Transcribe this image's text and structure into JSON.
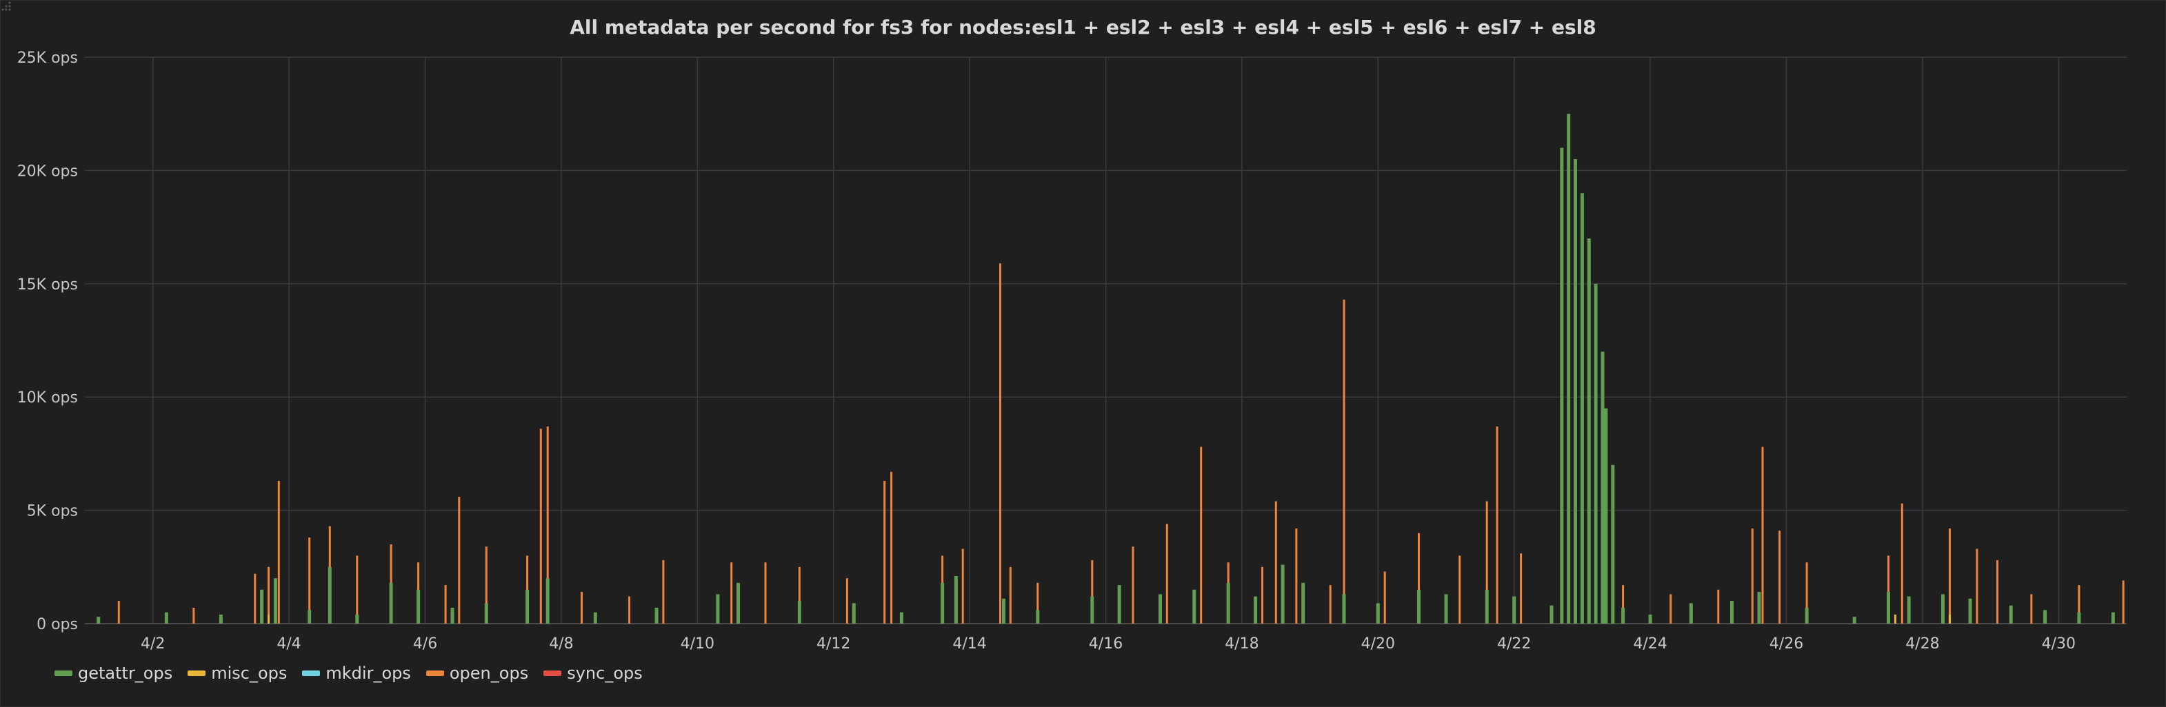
{
  "chart_data": {
    "type": "bar",
    "title": "All metadata per second for fs3 for nodes:esl1 + esl2 + esl3 + esl4 + esl5 + esl6 + esl7 + esl8",
    "x_range": [
      "4/1",
      "5/1"
    ],
    "x_ticks": [
      {
        "day": 2,
        "label": "4/2"
      },
      {
        "day": 4,
        "label": "4/4"
      },
      {
        "day": 6,
        "label": "4/6"
      },
      {
        "day": 8,
        "label": "4/8"
      },
      {
        "day": 10,
        "label": "4/10"
      },
      {
        "day": 12,
        "label": "4/12"
      },
      {
        "day": 14,
        "label": "4/14"
      },
      {
        "day": 16,
        "label": "4/16"
      },
      {
        "day": 18,
        "label": "4/18"
      },
      {
        "day": 20,
        "label": "4/20"
      },
      {
        "day": 22,
        "label": "4/22"
      },
      {
        "day": 24,
        "label": "4/24"
      },
      {
        "day": 26,
        "label": "4/26"
      },
      {
        "day": 28,
        "label": "4/28"
      },
      {
        "day": 30,
        "label": "4/30"
      }
    ],
    "y_ticks": [
      {
        "value": 0,
        "label": "0 ops"
      },
      {
        "value": 5000,
        "label": "5K ops"
      },
      {
        "value": 10000,
        "label": "10K ops"
      },
      {
        "value": 15000,
        "label": "15K ops"
      },
      {
        "value": 20000,
        "label": "20K ops"
      },
      {
        "value": 25000,
        "label": "25K ops"
      }
    ],
    "ylim": [
      0,
      25000
    ],
    "grid": true,
    "legend_position": "bottom-left",
    "series": [
      {
        "name": "getattr_ops",
        "color": "#629e51",
        "points": [
          [
            1.2,
            300
          ],
          [
            2.2,
            500
          ],
          [
            3.0,
            400
          ],
          [
            3.6,
            1500
          ],
          [
            3.8,
            2000
          ],
          [
            4.3,
            600
          ],
          [
            4.6,
            2500
          ],
          [
            5.0,
            400
          ],
          [
            5.5,
            1800
          ],
          [
            5.9,
            1500
          ],
          [
            6.4,
            700
          ],
          [
            6.9,
            900
          ],
          [
            7.5,
            1500
          ],
          [
            7.8,
            2000
          ],
          [
            8.5,
            500
          ],
          [
            9.4,
            700
          ],
          [
            10.3,
            1300
          ],
          [
            10.6,
            1800
          ],
          [
            11.5,
            1000
          ],
          [
            12.3,
            900
          ],
          [
            13.0,
            500
          ],
          [
            13.6,
            1800
          ],
          [
            13.8,
            2100
          ],
          [
            14.5,
            1100
          ],
          [
            15.0,
            600
          ],
          [
            15.8,
            1200
          ],
          [
            16.2,
            1700
          ],
          [
            16.8,
            1300
          ],
          [
            17.3,
            1500
          ],
          [
            17.8,
            1800
          ],
          [
            18.2,
            1200
          ],
          [
            18.6,
            2600
          ],
          [
            18.9,
            1800
          ],
          [
            19.5,
            1300
          ],
          [
            20.0,
            900
          ],
          [
            20.6,
            1500
          ],
          [
            21.0,
            1300
          ],
          [
            21.6,
            1500
          ],
          [
            22.0,
            1200
          ],
          [
            22.55,
            800
          ],
          [
            22.7,
            21000
          ],
          [
            22.8,
            22500
          ],
          [
            22.9,
            20500
          ],
          [
            23.0,
            19000
          ],
          [
            23.1,
            17000
          ],
          [
            23.2,
            15000
          ],
          [
            23.3,
            12000
          ],
          [
            23.35,
            9500
          ],
          [
            23.45,
            7000
          ],
          [
            23.6,
            700
          ],
          [
            24.0,
            400
          ],
          [
            24.6,
            900
          ],
          [
            25.2,
            1000
          ],
          [
            25.6,
            1400
          ],
          [
            26.3,
            700
          ],
          [
            27.0,
            300
          ],
          [
            27.5,
            1400
          ],
          [
            27.8,
            1200
          ],
          [
            28.3,
            1300
          ],
          [
            28.7,
            1100
          ],
          [
            29.3,
            800
          ],
          [
            29.8,
            600
          ],
          [
            30.3,
            500
          ],
          [
            30.8,
            500
          ]
        ]
      },
      {
        "name": "misc_ops",
        "color": "#eab839",
        "points": [
          [
            3.7,
            400
          ],
          [
            5.5,
            500
          ],
          [
            7.8,
            600
          ],
          [
            13.8,
            400
          ],
          [
            18.6,
            400
          ],
          [
            25.6,
            500
          ],
          [
            27.6,
            400
          ],
          [
            28.4,
            400
          ]
        ]
      },
      {
        "name": "mkdir_ops",
        "color": "#6ed0e0",
        "points": []
      },
      {
        "name": "open_ops",
        "color": "#ef843c",
        "points": [
          [
            1.5,
            1000
          ],
          [
            2.6,
            700
          ],
          [
            3.5,
            2200
          ],
          [
            3.7,
            2500
          ],
          [
            3.85,
            6300
          ],
          [
            4.3,
            3800
          ],
          [
            4.6,
            4300
          ],
          [
            5.0,
            3000
          ],
          [
            5.5,
            3500
          ],
          [
            5.9,
            2700
          ],
          [
            6.3,
            1700
          ],
          [
            6.5,
            5600
          ],
          [
            6.9,
            3400
          ],
          [
            7.5,
            3000
          ],
          [
            7.7,
            8600
          ],
          [
            7.8,
            8700
          ],
          [
            8.3,
            1400
          ],
          [
            9.0,
            1200
          ],
          [
            9.5,
            2800
          ],
          [
            10.5,
            2700
          ],
          [
            11.0,
            2700
          ],
          [
            11.5,
            2500
          ],
          [
            12.2,
            2000
          ],
          [
            12.75,
            6300
          ],
          [
            12.85,
            6700
          ],
          [
            13.6,
            3000
          ],
          [
            13.9,
            3300
          ],
          [
            14.45,
            15900
          ],
          [
            14.6,
            2500
          ],
          [
            15.0,
            1800
          ],
          [
            15.8,
            2800
          ],
          [
            16.4,
            3400
          ],
          [
            16.9,
            4400
          ],
          [
            17.4,
            7800
          ],
          [
            17.8,
            2700
          ],
          [
            18.3,
            2500
          ],
          [
            18.5,
            5400
          ],
          [
            18.8,
            4200
          ],
          [
            19.3,
            1700
          ],
          [
            19.5,
            14300
          ],
          [
            20.1,
            2300
          ],
          [
            20.6,
            4000
          ],
          [
            21.2,
            3000
          ],
          [
            21.6,
            5400
          ],
          [
            21.75,
            8700
          ],
          [
            22.1,
            3100
          ],
          [
            23.6,
            1700
          ],
          [
            24.3,
            1300
          ],
          [
            25.0,
            1500
          ],
          [
            25.5,
            4200
          ],
          [
            25.65,
            7800
          ],
          [
            25.9,
            4100
          ],
          [
            26.3,
            2700
          ],
          [
            27.5,
            3000
          ],
          [
            27.7,
            5300
          ],
          [
            28.4,
            4200
          ],
          [
            28.8,
            3300
          ],
          [
            29.1,
            2800
          ],
          [
            29.6,
            1300
          ],
          [
            30.3,
            1700
          ],
          [
            30.95,
            1900
          ]
        ]
      },
      {
        "name": "sync_ops",
        "color": "#e24d42",
        "points": []
      }
    ]
  }
}
